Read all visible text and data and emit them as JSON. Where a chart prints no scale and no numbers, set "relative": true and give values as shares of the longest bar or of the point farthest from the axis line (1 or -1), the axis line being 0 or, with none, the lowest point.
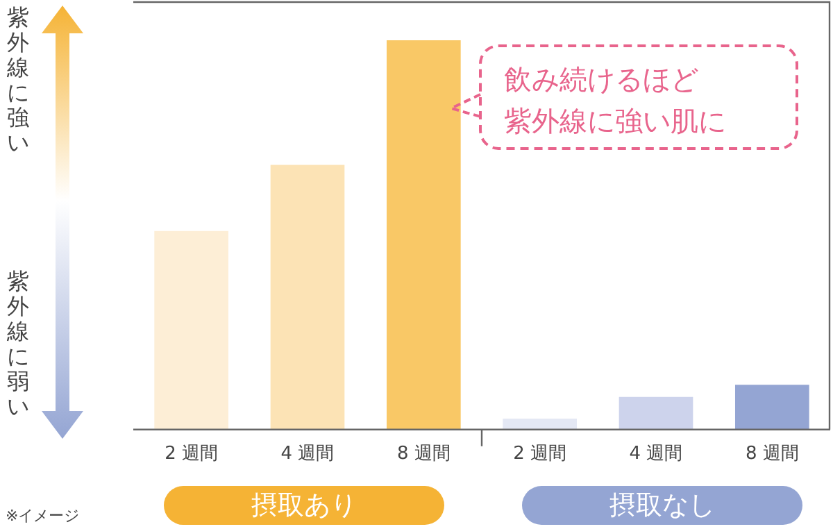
{
  "chart_data": {
    "type": "bar",
    "relative": true,
    "categories": [
      "2 週間",
      "4 週間",
      "8 週間",
      "2 週間",
      "4 週間",
      "8 週間"
    ],
    "values": [
      0.51,
      0.68,
      1,
      0.028,
      0.084,
      0.115
    ],
    "colors": [
      "#fdeed6",
      "#fce3b5",
      "#f9c866",
      "#e4e8f4",
      "#cdd3ec",
      "#94a5d3"
    ],
    "annotations": [
      "飲み続けるほど",
      "紫外線に強い肌に",
      "摂取あり",
      "摂取なし",
      "紫外線に強い",
      "紫外線に弱い",
      "※イメージ"
    ],
    "grid": false,
    "legend": false
  }
}
